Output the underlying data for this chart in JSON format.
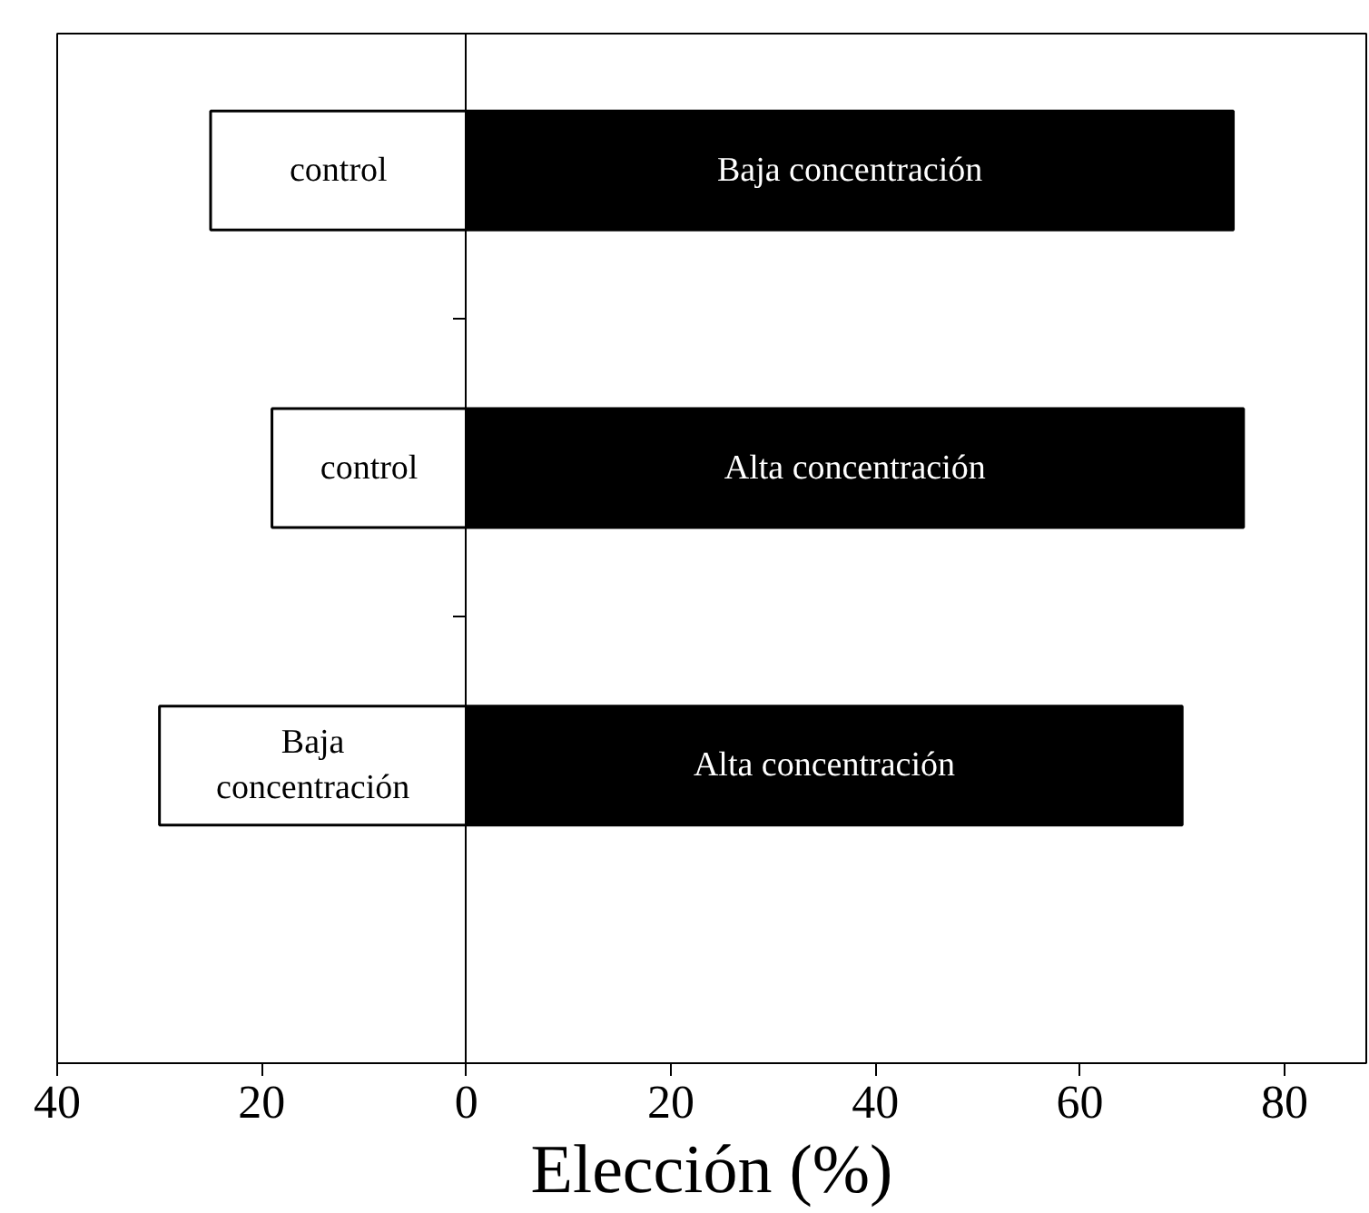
{
  "chart_data": {
    "type": "bar",
    "orientation": "horizontal",
    "stacked": true,
    "xlabel": "Elección (%)",
    "categories": [
      null,
      null,
      null
    ],
    "series": [
      {
        "color": "#ffffff",
        "values": [
          -25,
          -19,
          -30
        ],
        "value_labels": [
          "control",
          "control",
          "Baja concentración"
        ]
      },
      {
        "color": "#000000",
        "values": [
          75,
          76,
          70
        ],
        "value_labels": [
          "Baja concentración",
          "Alta concentración",
          "Alta concentración"
        ]
      }
    ],
    "xlim": [
      -40,
      88
    ],
    "xticks": [
      {
        "value": -40,
        "label": "40"
      },
      {
        "value": -20,
        "label": "20"
      },
      0,
      20,
      40,
      60,
      80
    ]
  }
}
